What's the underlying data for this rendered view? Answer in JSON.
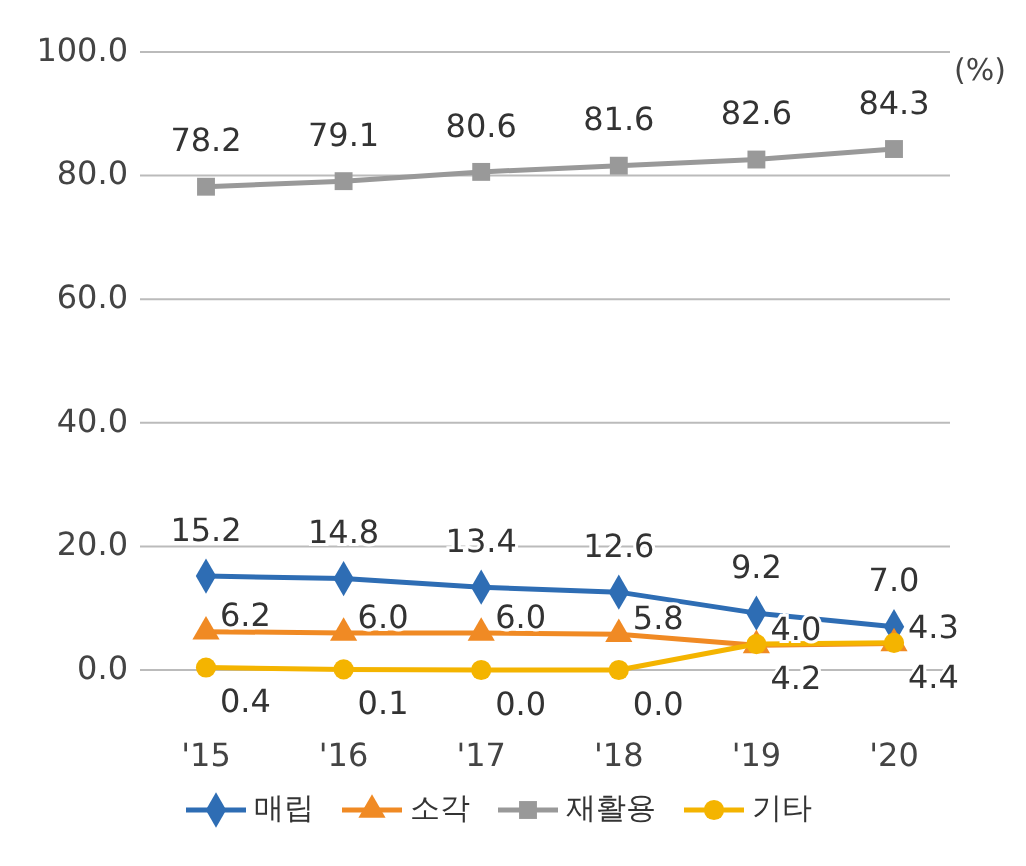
{
  "chart_data": {
    "type": "line",
    "categories": [
      "'15",
      "'16",
      "'17",
      "'18",
      "'19",
      "'20"
    ],
    "series": [
      {
        "name": "매립",
        "color": "#2e6db4",
        "marker": "diamond",
        "values": [
          15.2,
          14.8,
          13.4,
          12.6,
          9.2,
          7.0
        ],
        "value_labels": [
          "15.2",
          "14.8",
          "13.4",
          "12.6",
          "9.2",
          "7.0"
        ]
      },
      {
        "name": "소각",
        "color": "#f08a24",
        "marker": "triangle",
        "values": [
          6.2,
          6.0,
          6.0,
          5.8,
          4.0,
          4.3
        ],
        "value_labels": [
          "6.2",
          "6.0",
          "6.0",
          "5.8",
          "4.0",
          "4.3"
        ]
      },
      {
        "name": "재활용",
        "color": "#999999",
        "marker": "square",
        "values": [
          78.2,
          79.1,
          80.6,
          81.6,
          82.6,
          84.3
        ],
        "value_labels": [
          "78.2",
          "79.1",
          "80.6",
          "81.6",
          "82.6",
          "84.3"
        ]
      },
      {
        "name": "기타",
        "color": "#f4b400",
        "marker": "circle",
        "values": [
          0.4,
          0.1,
          0.0,
          0.0,
          4.2,
          4.4
        ],
        "value_labels": [
          "0.4",
          "0.1",
          "0.0",
          "0.0",
          "4.2",
          "4.4"
        ]
      }
    ],
    "ylim": [
      0,
      100
    ],
    "yticks": [
      {
        "value": 0,
        "label": "0.0"
      },
      {
        "value": 20,
        "label": "20.0"
      },
      {
        "value": 40,
        "label": "40.0"
      },
      {
        "value": 60,
        "label": "60.0"
      },
      {
        "value": 80,
        "label": "80.0"
      },
      {
        "value": 100,
        "label": "100.0"
      }
    ],
    "grid": "y",
    "legend": "bottom",
    "annotations": [
      "(%)"
    ]
  }
}
